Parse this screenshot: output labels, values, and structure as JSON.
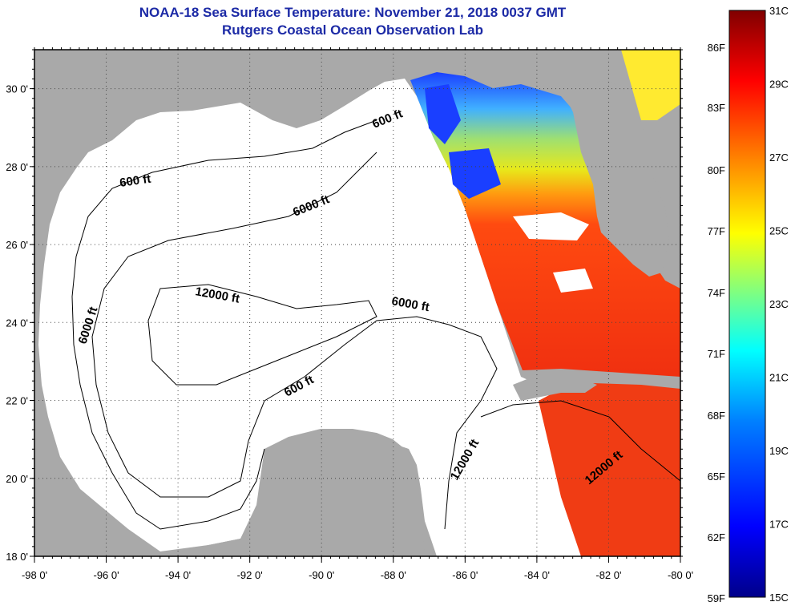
{
  "title": {
    "line1": "NOAA-18 Sea Surface Temperature:  November 21, 2018 0037 GMT",
    "line2": "Rutgers Coastal Ocean Observation Lab"
  },
  "map": {
    "lon_range": [
      -98,
      -80
    ],
    "lat_range": [
      18,
      31
    ],
    "lon_ticks": [
      "-98 0'",
      "-96 0'",
      "-94 0'",
      "-92 0'",
      "-90 0'",
      "-88 0'",
      "-86 0'",
      "-84 0'",
      "-82 0'",
      "-80 0'"
    ],
    "lat_ticks": [
      "18 0'",
      "20 0'",
      "22 0'",
      "24 0'",
      "26 0'",
      "28 0'",
      "30 0'"
    ],
    "grid": "dotted",
    "land_color": "#a9a9a9",
    "no_data_color": "#ffffff",
    "contour_labels": {
      "c1": "600 ft",
      "c2": "600 ft",
      "c3": "6000 ft",
      "c4": "12000 ft",
      "c5": "6000 ft",
      "c6": "6000 ft",
      "c7": "600 ft",
      "c8": "12000 ft",
      "c9": "12000 ft"
    }
  },
  "colorbar": {
    "celsius_labels": [
      "31C",
      "29C",
      "27C",
      "25C",
      "23C",
      "21C",
      "19C",
      "17C",
      "15C"
    ],
    "fahrenheit_labels": [
      "86F",
      "83F",
      "80F",
      "77F",
      "74F",
      "71F",
      "68F",
      "65F",
      "62F",
      "59F"
    ],
    "colors": [
      "#00008a",
      "#0000ff",
      "#0080ff",
      "#00ffff",
      "#80ff80",
      "#ffff00",
      "#ff8000",
      "#ff0000",
      "#800000"
    ]
  }
}
